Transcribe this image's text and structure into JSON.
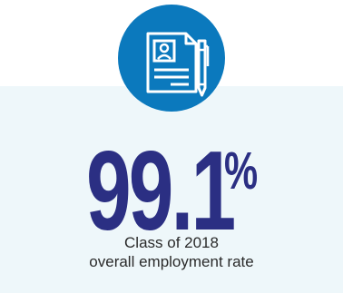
{
  "badge": {
    "icon": "resume-document-with-pen-icon",
    "color": "#0b79bd"
  },
  "stat": {
    "value": "99.1",
    "unit": "%",
    "color": "#2b2f83"
  },
  "caption": {
    "line1": "Class of 2018",
    "line2": "overall employment rate"
  },
  "colors": {
    "panel_background": "#eef7fa",
    "caption_text": "#2a2a2a"
  }
}
